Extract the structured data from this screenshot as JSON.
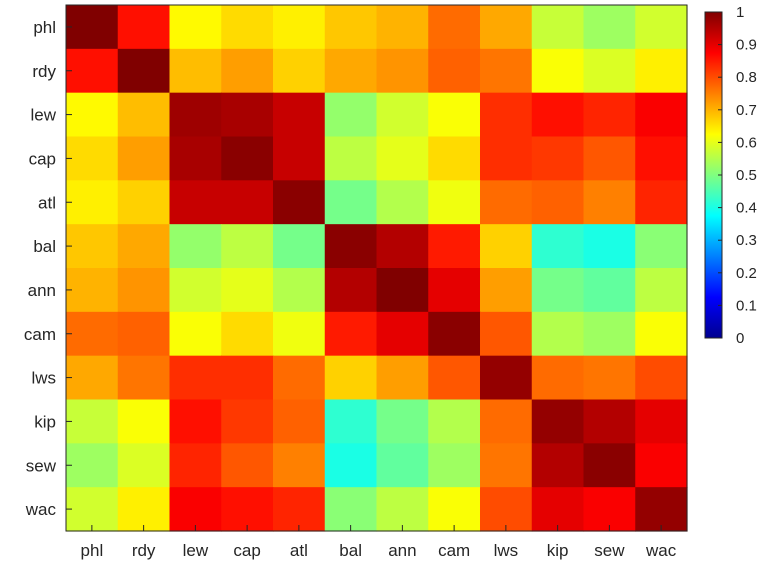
{
  "chart_data": {
    "type": "heatmap",
    "title": "",
    "xlabel": "",
    "ylabel": "",
    "x_categories": [
      "phl",
      "rdy",
      "lew",
      "cap",
      "atl",
      "bal",
      "ann",
      "cam",
      "lws",
      "kip",
      "sew",
      "wac"
    ],
    "y_categories": [
      "phl",
      "rdy",
      "lew",
      "cap",
      "atl",
      "bal",
      "ann",
      "cam",
      "lws",
      "kip",
      "sew",
      "wac"
    ],
    "values": [
      [
        1.0,
        0.86,
        0.63,
        0.66,
        0.64,
        0.68,
        0.7,
        0.77,
        0.71,
        0.57,
        0.53,
        0.58
      ],
      [
        0.86,
        1.0,
        0.69,
        0.72,
        0.67,
        0.71,
        0.73,
        0.78,
        0.76,
        0.62,
        0.59,
        0.64
      ],
      [
        0.63,
        0.69,
        0.97,
        0.96,
        0.93,
        0.52,
        0.58,
        0.62,
        0.83,
        0.86,
        0.84,
        0.88
      ],
      [
        0.66,
        0.72,
        0.96,
        0.99,
        0.93,
        0.56,
        0.6,
        0.66,
        0.83,
        0.82,
        0.79,
        0.86
      ],
      [
        0.64,
        0.67,
        0.93,
        0.93,
        0.99,
        0.49,
        0.55,
        0.61,
        0.77,
        0.78,
        0.75,
        0.84
      ],
      [
        0.68,
        0.71,
        0.52,
        0.56,
        0.49,
        0.99,
        0.95,
        0.85,
        0.67,
        0.42,
        0.4,
        0.51
      ],
      [
        0.7,
        0.73,
        0.58,
        0.6,
        0.55,
        0.95,
        1.0,
        0.9,
        0.72,
        0.49,
        0.47,
        0.56
      ],
      [
        0.77,
        0.78,
        0.62,
        0.66,
        0.61,
        0.85,
        0.9,
        0.99,
        0.79,
        0.55,
        0.53,
        0.62
      ],
      [
        0.71,
        0.76,
        0.83,
        0.83,
        0.77,
        0.67,
        0.72,
        0.79,
        0.98,
        0.77,
        0.76,
        0.8
      ],
      [
        0.57,
        0.62,
        0.86,
        0.82,
        0.78,
        0.42,
        0.49,
        0.55,
        0.77,
        0.98,
        0.95,
        0.9
      ],
      [
        0.53,
        0.59,
        0.84,
        0.79,
        0.75,
        0.4,
        0.47,
        0.53,
        0.76,
        0.95,
        0.99,
        0.88
      ],
      [
        0.58,
        0.64,
        0.88,
        0.86,
        0.84,
        0.51,
        0.56,
        0.62,
        0.8,
        0.9,
        0.88,
        0.98
      ]
    ],
    "colorbar": {
      "range": [
        0,
        1
      ],
      "ticks": [
        "0",
        "0.1",
        "0.2",
        "0.3",
        "0.4",
        "0.5",
        "0.6",
        "0.7",
        "0.8",
        "0.9",
        "1"
      ],
      "colormap": "jet"
    }
  }
}
